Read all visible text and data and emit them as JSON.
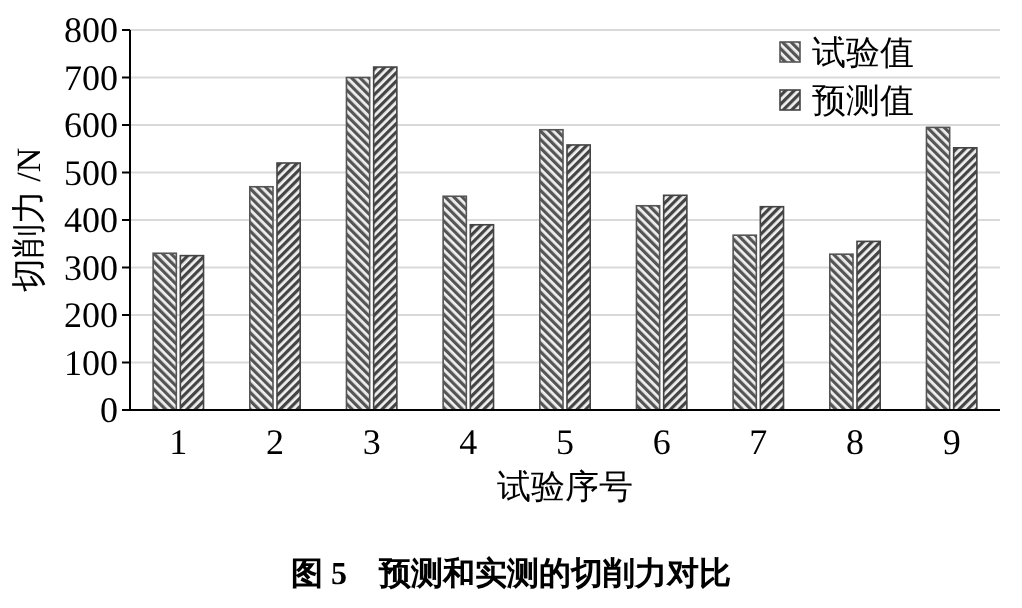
{
  "chart_data": {
    "type": "bar",
    "xlabel": "试验序号",
    "ylabel": "切削力 /N",
    "annotations": [
      "图 5　预测和实测的切削力对比"
    ],
    "categories": [
      "1",
      "2",
      "3",
      "4",
      "5",
      "6",
      "7",
      "8",
      "9"
    ],
    "series": [
      {
        "name": "试验值",
        "color": "#555555",
        "values": [
          330,
          470,
          700,
          450,
          590,
          430,
          368,
          328,
          595
        ]
      },
      {
        "name": "预测值",
        "color": "#444444",
        "values": [
          325,
          520,
          722,
          390,
          558,
          452,
          428,
          355,
          552
        ]
      }
    ],
    "ylim": [
      0,
      800
    ],
    "yticks": [
      0,
      100,
      200,
      300,
      400,
      500,
      600,
      700,
      800
    ],
    "grid": "y",
    "legend": "top right"
  }
}
